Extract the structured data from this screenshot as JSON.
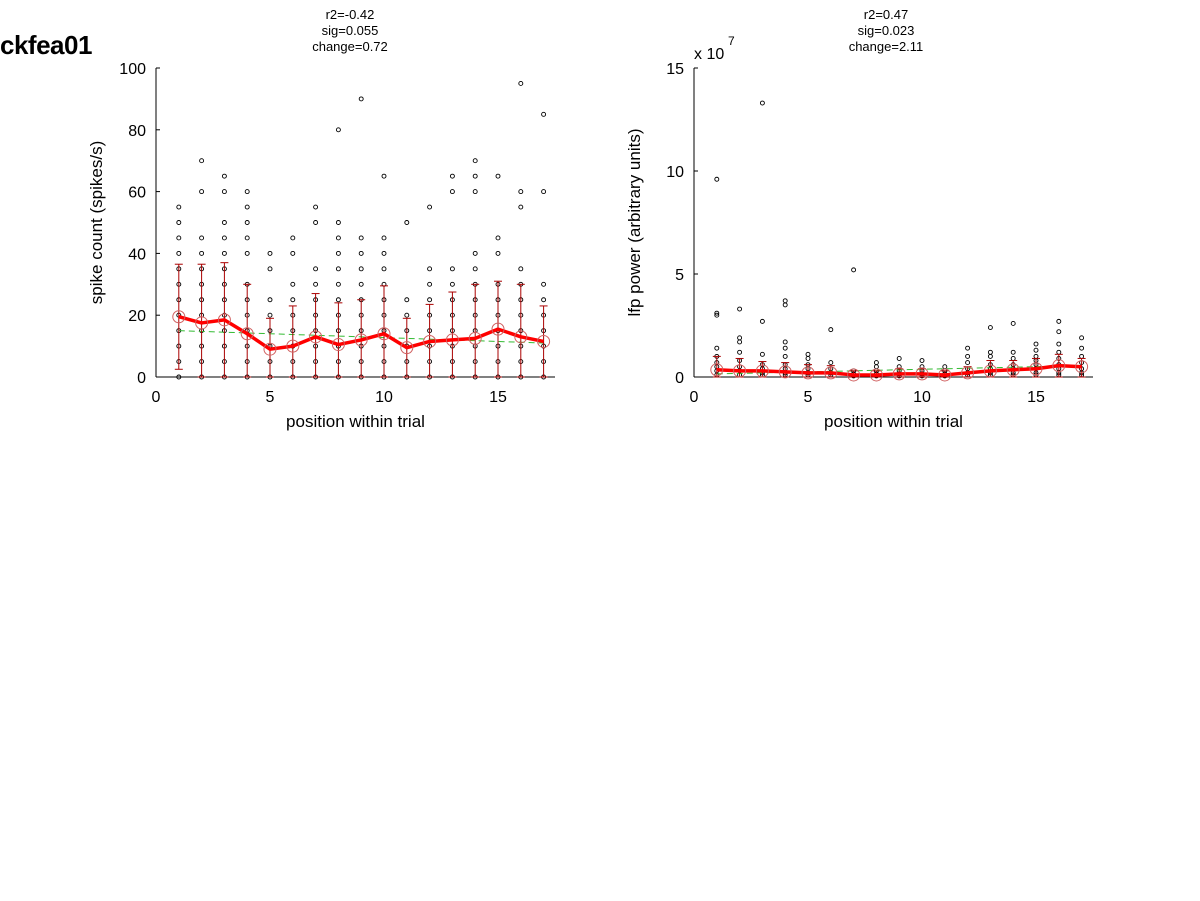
{
  "page": {
    "label": "ckfea01"
  },
  "colors": {
    "mean_line": "#ff0000",
    "error_bar": "#aa0000",
    "mean_marker": "#d06060",
    "trend_line": "#33bb33",
    "points": "#000000"
  },
  "chart_data": [
    {
      "type": "scatter",
      "stats": [
        "r2=-0.42",
        "sig=0.055",
        "change=0.72"
      ],
      "xlabel": "position within trial",
      "ylabel": "spike count (spikes/s)",
      "exponent_label": "",
      "xlim": [
        0,
        17.5
      ],
      "ylim": [
        0,
        100
      ],
      "xticks": [
        0,
        5,
        10,
        15
      ],
      "xtick_labels": [
        "0",
        "5",
        "10",
        "15"
      ],
      "yticks": [
        0,
        20,
        40,
        60,
        80,
        100
      ],
      "ytick_labels": [
        "0",
        "20",
        "40",
        "60",
        "80",
        "100"
      ],
      "points": [
        [
          1,
          0
        ],
        [
          1,
          5
        ],
        [
          1,
          10
        ],
        [
          1,
          15
        ],
        [
          1,
          20
        ],
        [
          1,
          25
        ],
        [
          1,
          30
        ],
        [
          1,
          35
        ],
        [
          1,
          40
        ],
        [
          1,
          45
        ],
        [
          1,
          50
        ],
        [
          1,
          55
        ],
        [
          2,
          0
        ],
        [
          2,
          5
        ],
        [
          2,
          10
        ],
        [
          2,
          15
        ],
        [
          2,
          20
        ],
        [
          2,
          25
        ],
        [
          2,
          30
        ],
        [
          2,
          35
        ],
        [
          2,
          40
        ],
        [
          2,
          45
        ],
        [
          2,
          60
        ],
        [
          2,
          70
        ],
        [
          3,
          0
        ],
        [
          3,
          5
        ],
        [
          3,
          10
        ],
        [
          3,
          15
        ],
        [
          3,
          20
        ],
        [
          3,
          25
        ],
        [
          3,
          30
        ],
        [
          3,
          35
        ],
        [
          3,
          40
        ],
        [
          3,
          45
        ],
        [
          3,
          50
        ],
        [
          3,
          60
        ],
        [
          3,
          65
        ],
        [
          4,
          0
        ],
        [
          4,
          5
        ],
        [
          4,
          10
        ],
        [
          4,
          15
        ],
        [
          4,
          20
        ],
        [
          4,
          25
        ],
        [
          4,
          30
        ],
        [
          4,
          40
        ],
        [
          4,
          45
        ],
        [
          4,
          50
        ],
        [
          4,
          55
        ],
        [
          4,
          60
        ],
        [
          5,
          0
        ],
        [
          5,
          5
        ],
        [
          5,
          10
        ],
        [
          5,
          15
        ],
        [
          5,
          20
        ],
        [
          5,
          25
        ],
        [
          5,
          35
        ],
        [
          5,
          40
        ],
        [
          6,
          0
        ],
        [
          6,
          5
        ],
        [
          6,
          10
        ],
        [
          6,
          15
        ],
        [
          6,
          20
        ],
        [
          6,
          25
        ],
        [
          6,
          30
        ],
        [
          6,
          40
        ],
        [
          6,
          45
        ],
        [
          7,
          0
        ],
        [
          7,
          5
        ],
        [
          7,
          10
        ],
        [
          7,
          15
        ],
        [
          7,
          20
        ],
        [
          7,
          25
        ],
        [
          7,
          30
        ],
        [
          7,
          35
        ],
        [
          7,
          50
        ],
        [
          7,
          55
        ],
        [
          8,
          0
        ],
        [
          8,
          5
        ],
        [
          8,
          10
        ],
        [
          8,
          15
        ],
        [
          8,
          20
        ],
        [
          8,
          25
        ],
        [
          8,
          30
        ],
        [
          8,
          35
        ],
        [
          8,
          40
        ],
        [
          8,
          45
        ],
        [
          8,
          50
        ],
        [
          8,
          80
        ],
        [
          9,
          0
        ],
        [
          9,
          5
        ],
        [
          9,
          10
        ],
        [
          9,
          15
        ],
        [
          9,
          20
        ],
        [
          9,
          25
        ],
        [
          9,
          30
        ],
        [
          9,
          35
        ],
        [
          9,
          40
        ],
        [
          9,
          45
        ],
        [
          9,
          90
        ],
        [
          10,
          0
        ],
        [
          10,
          5
        ],
        [
          10,
          10
        ],
        [
          10,
          15
        ],
        [
          10,
          20
        ],
        [
          10,
          25
        ],
        [
          10,
          30
        ],
        [
          10,
          35
        ],
        [
          10,
          40
        ],
        [
          10,
          45
        ],
        [
          10,
          65
        ],
        [
          11,
          0
        ],
        [
          11,
          5
        ],
        [
          11,
          10
        ],
        [
          11,
          15
        ],
        [
          11,
          20
        ],
        [
          11,
          25
        ],
        [
          11,
          50
        ],
        [
          12,
          0
        ],
        [
          12,
          5
        ],
        [
          12,
          10
        ],
        [
          12,
          15
        ],
        [
          12,
          20
        ],
        [
          12,
          25
        ],
        [
          12,
          30
        ],
        [
          12,
          35
        ],
        [
          12,
          55
        ],
        [
          13,
          0
        ],
        [
          13,
          5
        ],
        [
          13,
          10
        ],
        [
          13,
          15
        ],
        [
          13,
          20
        ],
        [
          13,
          25
        ],
        [
          13,
          30
        ],
        [
          13,
          35
        ],
        [
          13,
          60
        ],
        [
          13,
          65
        ],
        [
          14,
          0
        ],
        [
          14,
          5
        ],
        [
          14,
          10
        ],
        [
          14,
          15
        ],
        [
          14,
          20
        ],
        [
          14,
          25
        ],
        [
          14,
          30
        ],
        [
          14,
          35
        ],
        [
          14,
          40
        ],
        [
          14,
          60
        ],
        [
          14,
          65
        ],
        [
          14,
          70
        ],
        [
          15,
          0
        ],
        [
          15,
          5
        ],
        [
          15,
          10
        ],
        [
          15,
          15
        ],
        [
          15,
          20
        ],
        [
          15,
          25
        ],
        [
          15,
          30
        ],
        [
          15,
          40
        ],
        [
          15,
          45
        ],
        [
          15,
          65
        ],
        [
          16,
          0
        ],
        [
          16,
          5
        ],
        [
          16,
          10
        ],
        [
          16,
          15
        ],
        [
          16,
          20
        ],
        [
          16,
          25
        ],
        [
          16,
          30
        ],
        [
          16,
          35
        ],
        [
          16,
          55
        ],
        [
          16,
          60
        ],
        [
          16,
          95
        ],
        [
          17,
          0
        ],
        [
          17,
          5
        ],
        [
          17,
          10
        ],
        [
          17,
          15
        ],
        [
          17,
          20
        ],
        [
          17,
          25
        ],
        [
          17,
          30
        ],
        [
          17,
          60
        ],
        [
          17,
          85
        ]
      ],
      "mean": {
        "x": [
          1,
          2,
          3,
          4,
          5,
          6,
          7,
          8,
          9,
          10,
          11,
          12,
          13,
          14,
          15,
          16,
          17
        ],
        "y": [
          19.5,
          17.5,
          18.5,
          14,
          9,
          10,
          13,
          10.5,
          12,
          14,
          9.5,
          11.5,
          12,
          12.5,
          15.5,
          13,
          11.5
        ]
      },
      "error_bars": [
        [
          2.5,
          36.5
        ],
        [
          0,
          36.5
        ],
        [
          0,
          37
        ],
        [
          0,
          30
        ],
        [
          0,
          19
        ],
        [
          0,
          23
        ],
        [
          0,
          27
        ],
        [
          0,
          24
        ],
        [
          0,
          25
        ],
        [
          0,
          29.5
        ],
        [
          0,
          19
        ],
        [
          0,
          23.5
        ],
        [
          0,
          27.5
        ],
        [
          0,
          30
        ],
        [
          0,
          31
        ],
        [
          0,
          30
        ],
        [
          0,
          23
        ]
      ],
      "trend": {
        "x": [
          1,
          17
        ],
        "y": [
          15,
          11
        ]
      }
    },
    {
      "type": "scatter",
      "stats": [
        "r2=0.47",
        "sig=0.023",
        "change=2.11"
      ],
      "xlabel": "position within trial",
      "ylabel": "lfp power (arbitrary units)",
      "exponent_label": "x 10",
      "exponent_power": "7",
      "xlim": [
        0,
        17.5
      ],
      "ylim": [
        0,
        15
      ],
      "xticks": [
        0,
        5,
        10,
        15
      ],
      "xtick_labels": [
        "0",
        "5",
        "10",
        "15"
      ],
      "yticks": [
        0,
        5,
        10,
        15
      ],
      "ytick_labels": [
        "0",
        "5",
        "10",
        "15"
      ],
      "points": [
        [
          1,
          0.1
        ],
        [
          1,
          0.3
        ],
        [
          1,
          0.5
        ],
        [
          1,
          0.7
        ],
        [
          1,
          1.0
        ],
        [
          1,
          1.4
        ],
        [
          1,
          3.0
        ],
        [
          1,
          3.1
        ],
        [
          1,
          9.6
        ],
        [
          2,
          0.1
        ],
        [
          2,
          0.3
        ],
        [
          2,
          0.5
        ],
        [
          2,
          0.8
        ],
        [
          2,
          1.2
        ],
        [
          2,
          1.7
        ],
        [
          2,
          1.9
        ],
        [
          2,
          3.3
        ],
        [
          3,
          0.1
        ],
        [
          3,
          0.2
        ],
        [
          3,
          0.4
        ],
        [
          3,
          0.6
        ],
        [
          3,
          1.1
        ],
        [
          3,
          2.7
        ],
        [
          3,
          13.3
        ],
        [
          4,
          0.1
        ],
        [
          4,
          0.2
        ],
        [
          4,
          0.4
        ],
        [
          4,
          0.6
        ],
        [
          4,
          1.0
        ],
        [
          4,
          1.4
        ],
        [
          4,
          1.7
        ],
        [
          4,
          3.5
        ],
        [
          4,
          3.7
        ],
        [
          5,
          0.1
        ],
        [
          5,
          0.2
        ],
        [
          5,
          0.4
        ],
        [
          5,
          0.6
        ],
        [
          5,
          0.9
        ],
        [
          5,
          1.1
        ],
        [
          6,
          0.1
        ],
        [
          6,
          0.2
        ],
        [
          6,
          0.4
        ],
        [
          6,
          0.7
        ],
        [
          6,
          2.3
        ],
        [
          7,
          0.05
        ],
        [
          7,
          0.15
        ],
        [
          7,
          0.3
        ],
        [
          7,
          5.2
        ],
        [
          8,
          0.05
        ],
        [
          8,
          0.15
        ],
        [
          8,
          0.3
        ],
        [
          8,
          0.5
        ],
        [
          8,
          0.7
        ],
        [
          9,
          0.05
        ],
        [
          9,
          0.15
        ],
        [
          9,
          0.3
        ],
        [
          9,
          0.5
        ],
        [
          9,
          0.9
        ],
        [
          10,
          0.05
        ],
        [
          10,
          0.15
        ],
        [
          10,
          0.3
        ],
        [
          10,
          0.5
        ],
        [
          10,
          0.8
        ],
        [
          11,
          0.05
        ],
        [
          11,
          0.15
        ],
        [
          11,
          0.3
        ],
        [
          11,
          0.5
        ],
        [
          12,
          0.1
        ],
        [
          12,
          0.2
        ],
        [
          12,
          0.4
        ],
        [
          12,
          0.7
        ],
        [
          12,
          1.0
        ],
        [
          12,
          1.4
        ],
        [
          13,
          0.1
        ],
        [
          13,
          0.2
        ],
        [
          13,
          0.4
        ],
        [
          13,
          0.6
        ],
        [
          13,
          1.0
        ],
        [
          13,
          1.2
        ],
        [
          13,
          2.4
        ],
        [
          14,
          0.1
        ],
        [
          14,
          0.2
        ],
        [
          14,
          0.4
        ],
        [
          14,
          0.6
        ],
        [
          14,
          0.9
        ],
        [
          14,
          1.2
        ],
        [
          14,
          2.6
        ],
        [
          15,
          0.1
        ],
        [
          15,
          0.2
        ],
        [
          15,
          0.4
        ],
        [
          15,
          0.6
        ],
        [
          15,
          0.8
        ],
        [
          15,
          1.0
        ],
        [
          15,
          1.3
        ],
        [
          15,
          1.6
        ],
        [
          16,
          0.1
        ],
        [
          16,
          0.2
        ],
        [
          16,
          0.4
        ],
        [
          16,
          0.6
        ],
        [
          16,
          0.9
        ],
        [
          16,
          1.2
        ],
        [
          16,
          1.6
        ],
        [
          16,
          2.2
        ],
        [
          16,
          2.7
        ],
        [
          17,
          0.1
        ],
        [
          17,
          0.2
        ],
        [
          17,
          0.4
        ],
        [
          17,
          0.7
        ],
        [
          17,
          1.0
        ],
        [
          17,
          1.4
        ],
        [
          17,
          1.9
        ]
      ],
      "mean": {
        "x": [
          1,
          2,
          3,
          4,
          5,
          6,
          7,
          8,
          9,
          10,
          11,
          12,
          13,
          14,
          15,
          16,
          17
        ],
        "y": [
          0.35,
          0.3,
          0.3,
          0.25,
          0.2,
          0.2,
          0.1,
          0.1,
          0.15,
          0.15,
          0.1,
          0.2,
          0.3,
          0.35,
          0.4,
          0.55,
          0.5
        ]
      },
      "error_bars": [
        [
          0,
          1.0
        ],
        [
          0,
          0.9
        ],
        [
          0,
          0.75
        ],
        [
          0,
          0.7
        ],
        [
          0,
          0.6
        ],
        [
          0,
          0.55
        ],
        [
          0,
          0.3
        ],
        [
          0,
          0.3
        ],
        [
          0,
          0.4
        ],
        [
          0,
          0.4
        ],
        [
          0,
          0.3
        ],
        [
          0,
          0.5
        ],
        [
          0,
          0.8
        ],
        [
          0,
          0.8
        ],
        [
          0,
          0.9
        ],
        [
          0,
          1.1
        ],
        [
          0,
          0.9
        ]
      ],
      "trend": {
        "x": [
          1,
          17
        ],
        "y": [
          0.15,
          0.55
        ]
      }
    }
  ]
}
